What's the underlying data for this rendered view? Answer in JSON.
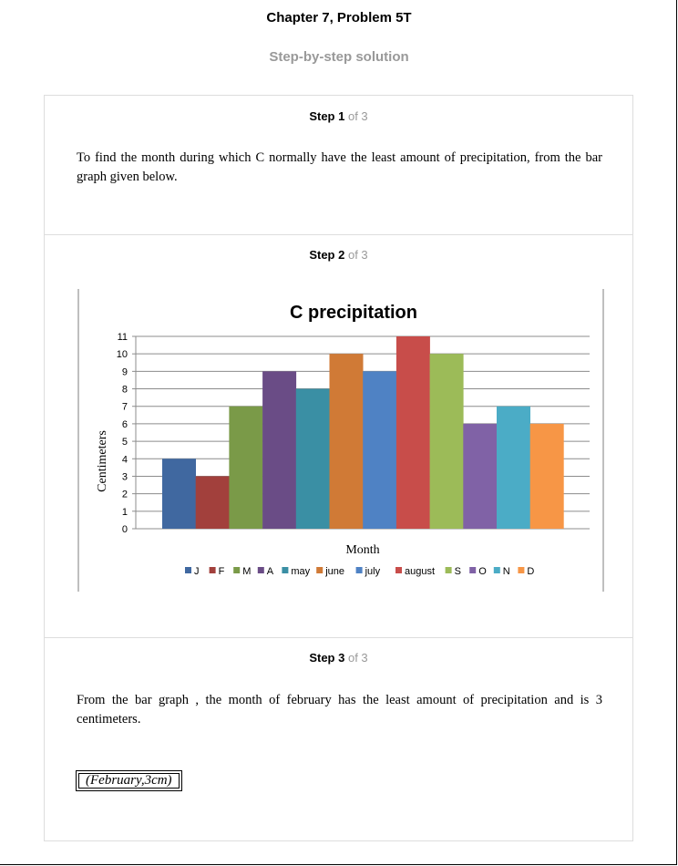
{
  "header": {
    "title": "Chapter 7, Problem 5T",
    "subtitle": "Step-by-step solution"
  },
  "steps": [
    {
      "label": "Step 1",
      "of": "of 3",
      "text": "To find the month during which C normally have the least amount of precipitation, from the bar graph given below."
    },
    {
      "label": "Step 2",
      "of": "of 3"
    },
    {
      "label": "Step 3",
      "of": "of 3",
      "text": "From the bar graph , the month of february has the least amount of precipitation and is 3 centimeters.",
      "answer": "(February,3cm)"
    }
  ],
  "chart_data": {
    "type": "bar",
    "title": "C precipitation",
    "xlabel": "Month",
    "ylabel": "Centimeters",
    "ylim": [
      0,
      11
    ],
    "yticks": [
      "0",
      "1",
      "2",
      "3",
      "4",
      "5",
      "6",
      "7",
      "8",
      "9",
      "10",
      "11"
    ],
    "grid": true,
    "legend_position": "bottom",
    "series": [
      {
        "name": "J",
        "value": 4,
        "color": "#4068a0"
      },
      {
        "name": "F",
        "value": 3,
        "color": "#a2403c"
      },
      {
        "name": "M",
        "value": 7,
        "color": "#7a9a48"
      },
      {
        "name": "A",
        "value": 9,
        "color": "#6a4c86"
      },
      {
        "name": "may",
        "value": 8,
        "color": "#3a8fa4"
      },
      {
        "name": "june",
        "value": 10,
        "color": "#d07a36"
      },
      {
        "name": "july",
        "value": 9,
        "color": "#4f82c4"
      },
      {
        "name": "august",
        "value": 11,
        "color": "#c84d4a"
      },
      {
        "name": "S",
        "value": 10,
        "color": "#9cbb58"
      },
      {
        "name": "O",
        "value": 6,
        "color": "#8062a6"
      },
      {
        "name": "N",
        "value": 7,
        "color": "#4bacc6"
      },
      {
        "name": "D",
        "value": 6,
        "color": "#f79646"
      }
    ]
  }
}
